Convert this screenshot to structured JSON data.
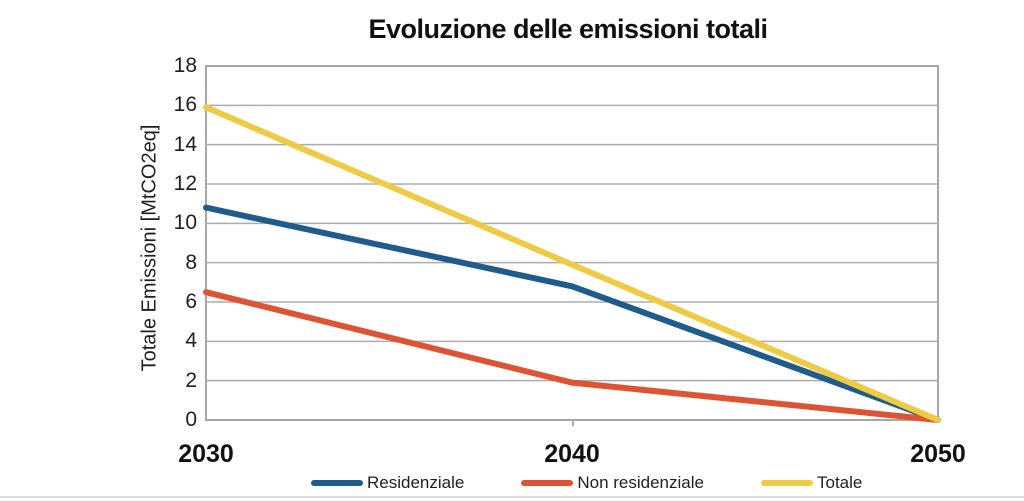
{
  "title": "Evoluzione delle emissioni totali",
  "chart_data": {
    "type": "line",
    "title": "Evoluzione delle emissioni totali",
    "x_labels": [
      "2030",
      "2040",
      "2050"
    ],
    "x_values": [
      2030,
      2040,
      2050
    ],
    "xlabel": "",
    "ylabel": "Totale Emissioni [MtCO2eq]",
    "ylim": [
      0,
      18
    ],
    "yticks": [
      0,
      2,
      4,
      6,
      8,
      10,
      12,
      14,
      16,
      18
    ],
    "grid": "horizontal",
    "legend_position": "bottom",
    "series": [
      {
        "name": "Residenziale",
        "color": "#1F5C8B",
        "values": [
          10.8,
          6.8,
          0
        ]
      },
      {
        "name": "Non residenziale",
        "color": "#DD5434",
        "values": [
          6.5,
          1.9,
          0
        ]
      },
      {
        "name": "Totale",
        "color": "#EFCB44",
        "values": [
          15.9,
          7.9,
          0
        ]
      }
    ],
    "gridline_color": "#ADADAD",
    "axis_border_color": "#A6A6A6"
  }
}
